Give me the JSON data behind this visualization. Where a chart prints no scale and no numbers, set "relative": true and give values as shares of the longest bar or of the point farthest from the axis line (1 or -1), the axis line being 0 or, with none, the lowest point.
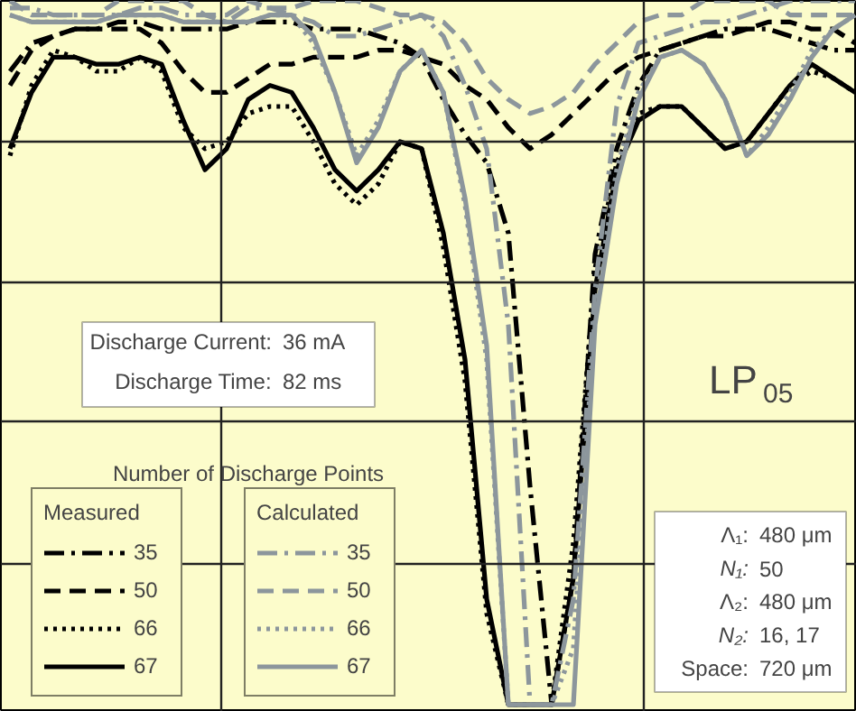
{
  "chart_data": {
    "type": "line",
    "relative": true,
    "grid": true,
    "legend": "bottom left",
    "legend_title": "Number of Discharge Points",
    "annotations": [
      "Discharge Current: 36 mA",
      "Discharge Time: 82 ms",
      "LP$_{05}$",
      "Measured",
      "Calculated",
      "Λ₁: 480 μm",
      "N₁: 50",
      "Λ₂: 480 μm",
      "N₂: 16, 17",
      "Space: 720 μm"
    ],
    "categories": [
      null,
      null,
      null,
      null,
      null,
      null,
      null,
      null,
      null,
      null,
      null,
      null,
      null,
      null,
      null,
      null,
      null,
      null,
      null,
      null,
      null,
      null,
      null,
      null,
      null,
      null,
      null,
      null,
      null,
      null,
      null,
      null,
      null,
      null,
      null,
      null,
      null,
      null,
      null,
      null
    ],
    "series": [
      {
        "name": "35",
        "color": "#000000",
        "line_style": "dashdot",
        "values": [
          0.9,
          0.94,
          0.95,
          0.96,
          0.96,
          0.97,
          0.97,
          0.96,
          0.96,
          0.96,
          0.96,
          0.97,
          0.97,
          0.97,
          0.96,
          0.96,
          0.96,
          0.95,
          0.94,
          0.92,
          0.86,
          0.81,
          0.77,
          0.67,
          0.31,
          0,
          0.18,
          0.64,
          0.79,
          0.88,
          0.93,
          0.94,
          0.95,
          0.96,
          0.96,
          0.96,
          0.95,
          0.94,
          0.93,
          0.93
        ]
      },
      {
        "name": "50",
        "color": "#000000",
        "line_style": "dashed",
        "values": [
          0.88,
          0.93,
          0.95,
          0.96,
          0.96,
          0.96,
          0.96,
          0.94,
          0.9,
          0.87,
          0.87,
          0.89,
          0.91,
          0.91,
          0.92,
          0.92,
          0.92,
          0.93,
          0.93,
          0.92,
          0.91,
          0.88,
          0.86,
          0.82,
          0.79,
          0.81,
          0.84,
          0.87,
          0.9,
          0.92,
          0.93,
          0.94,
          0.95,
          0.95,
          0.96,
          0.97,
          0.97,
          0.96,
          0.96,
          0.94
        ]
      },
      {
        "name": "66",
        "color": "#000000",
        "line_style": "dotted",
        "values": [
          0.78,
          0.88,
          0.93,
          0.92,
          0.9,
          0.9,
          0.92,
          0.9,
          0.82,
          0.79,
          0.8,
          0.84,
          0.85,
          0.85,
          0.8,
          0.74,
          0.71,
          0.74,
          0.8,
          0.79,
          0.65,
          0.46,
          0.13,
          0,
          0,
          0,
          0.23,
          0.62,
          0.77,
          0.84,
          0.85,
          0.85,
          0.82,
          0.79,
          0.8,
          0.84,
          0.88,
          0.9,
          0.89,
          0.87
        ]
      },
      {
        "name": "67",
        "color": "#000000",
        "line_style": "solid",
        "values": [
          0.79,
          0.87,
          0.92,
          0.92,
          0.91,
          0.91,
          0.92,
          0.91,
          0.83,
          0.76,
          0.79,
          0.86,
          0.88,
          0.87,
          0.82,
          0.76,
          0.73,
          0.76,
          0.8,
          0.79,
          0.67,
          0.49,
          0.15,
          0,
          0,
          0,
          0.18,
          0.59,
          0.76,
          0.83,
          0.85,
          0.85,
          0.82,
          0.79,
          0.8,
          0.84,
          0.88,
          0.91,
          0.89,
          0.87
        ]
      },
      {
        "name": "35",
        "color": "#8c969c",
        "line_style": "dashdot",
        "values": [
          0.99,
          0.99,
          0.98,
          0.98,
          0.98,
          0.98,
          0.99,
          0.99,
          0.98,
          0.98,
          0.97,
          0.99,
          0.99,
          0.98,
          0.97,
          0.95,
          0.95,
          0.96,
          0.97,
          0.98,
          0.95,
          0.88,
          0.79,
          0.54,
          0,
          0,
          0.15,
          0.59,
          0.85,
          0.94,
          0.95,
          0.96,
          0.97,
          0.97,
          0.98,
          0.99,
          1,
          1,
          1,
          1
        ]
      },
      {
        "name": "50",
        "color": "#8c969c",
        "line_style": "dashed",
        "values": [
          1,
          0.98,
          0.98,
          0.98,
          0.98,
          1,
          1,
          1,
          1,
          0.98,
          0.98,
          1,
          0.99,
          0.99,
          1,
          1,
          1,
          0.99,
          0.98,
          0.98,
          0.97,
          0.94,
          0.89,
          0.86,
          0.84,
          0.85,
          0.87,
          0.91,
          0.94,
          0.97,
          0.98,
          0.98,
          1,
          1,
          1,
          1,
          0.98,
          0.98,
          0.98,
          0.98
        ]
      },
      {
        "name": "66",
        "color": "#8c969c",
        "line_style": "dotted",
        "values": [
          0.98,
          0.97,
          0.97,
          0.97,
          0.97,
          0.98,
          0.98,
          0.98,
          0.97,
          0.97,
          0.97,
          0.97,
          0.98,
          0.98,
          0.94,
          0.87,
          0.78,
          0.83,
          0.9,
          0.93,
          0.87,
          0.71,
          0.49,
          0,
          0,
          0,
          0.08,
          0.56,
          0.76,
          0.87,
          0.92,
          0.93,
          0.91,
          0.86,
          0.78,
          0.82,
          0.87,
          0.93,
          0.96,
          0.98
        ]
      },
      {
        "name": "67",
        "color": "#8c969c",
        "line_style": "solid",
        "values": [
          0.98,
          0.97,
          0.97,
          0.97,
          0.97,
          0.98,
          0.98,
          0.98,
          0.97,
          0.97,
          0.97,
          0.97,
          0.98,
          0.98,
          0.95,
          0.87,
          0.77,
          0.82,
          0.9,
          0.93,
          0.87,
          0.72,
          0.51,
          0,
          0,
          0,
          0,
          0.54,
          0.74,
          0.86,
          0.92,
          0.93,
          0.91,
          0.86,
          0.78,
          0.81,
          0.86,
          0.92,
          0.96,
          0.98
        ]
      }
    ]
  }
}
